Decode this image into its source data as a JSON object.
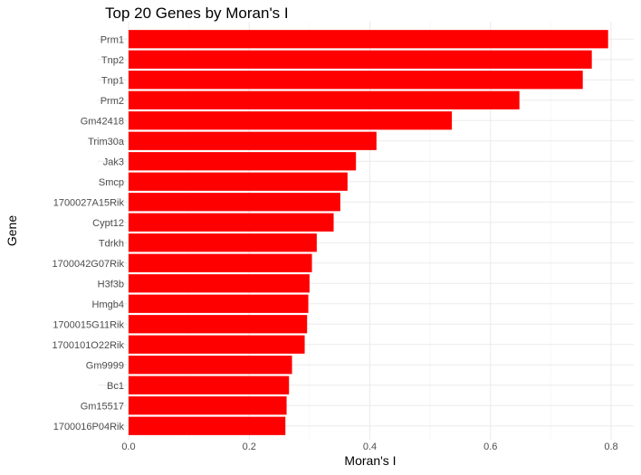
{
  "chart_data": {
    "type": "bar",
    "orientation": "horizontal",
    "title": "Top 20 Genes by Moran's I",
    "xlabel": "Moran's I",
    "ylabel": "Gene",
    "xlim": [
      0,
      0.8
    ],
    "xticks": [
      "0.0",
      "0.2",
      "0.4",
      "0.6",
      "0.8"
    ],
    "grid": true,
    "bar_color": "#ff0000",
    "categories": [
      "Prm1",
      "Tnp2",
      "Tnp1",
      "Prm2",
      "Gm42418",
      "Trim30a",
      "Jak3",
      "Smcp",
      "1700027A15Rik",
      "Cypt12",
      "Tdrkh",
      "1700042G07Rik",
      "H3f3b",
      "Hmgb4",
      "1700015G11Rik",
      "1700101O22Rik",
      "Gm9999",
      "Bc1",
      "Gm15517",
      "1700016P04Rik"
    ],
    "values": [
      0.795,
      0.768,
      0.753,
      0.648,
      0.536,
      0.411,
      0.377,
      0.363,
      0.351,
      0.34,
      0.312,
      0.304,
      0.3,
      0.298,
      0.296,
      0.292,
      0.271,
      0.266,
      0.262,
      0.26
    ]
  }
}
